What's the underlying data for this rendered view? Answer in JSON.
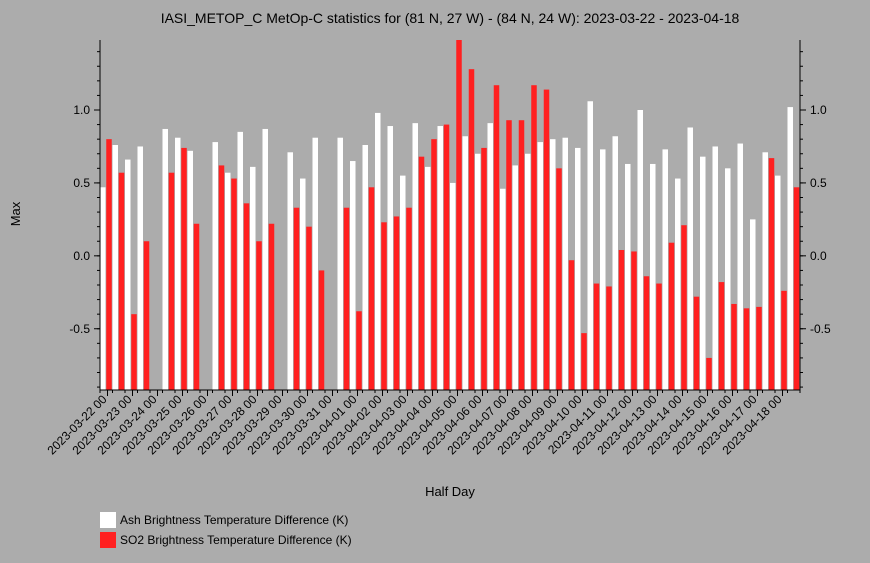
{
  "chart_data": {
    "type": "bar",
    "title": "IASI_METOP_C MetOp-C statistics for (81 N, 27 W) - (84 N, 24 W): 2023-03-22 - 2023-04-18",
    "xlabel": "Half Day",
    "ylabel": "Max",
    "ylim": [
      -0.92,
      1.48
    ],
    "yticks": [
      -0.5,
      0.0,
      0.5,
      1.0
    ],
    "ytick_labels": [
      "-0.5",
      "0.0",
      "0.5",
      "1.0"
    ],
    "grid": false,
    "legend_position": "bottom-left",
    "x_tick_labels": [
      "2023-03-22 00",
      "2023-03-23 00",
      "2023-03-24 00",
      "2023-03-25 00",
      "2023-03-26 00",
      "2023-03-27 00",
      "2023-03-28 00",
      "2023-03-29 00",
      "2023-03-30 00",
      "2023-03-31 00",
      "2023-04-01 00",
      "2023-04-02 00",
      "2023-04-03 00",
      "2023-04-04 00",
      "2023-04-05 00",
      "2023-04-06 00",
      "2023-04-07 00",
      "2023-04-08 00",
      "2023-04-09 00",
      "2023-04-10 00",
      "2023-04-11 00",
      "2023-04-12 00",
      "2023-04-13 00",
      "2023-04-14 00",
      "2023-04-15 00",
      "2023-04-16 00",
      "2023-04-17 00",
      "2023-04-18 00"
    ],
    "series": [
      {
        "name": "Ash Brightness Temperature Difference (K)",
        "color": "#ffffff",
        "values": [
          0.47,
          0.76,
          0.66,
          0.75,
          null,
          0.87,
          0.81,
          0.72,
          null,
          0.78,
          0.57,
          0.85,
          0.61,
          0.87,
          null,
          0.71,
          0.53,
          0.81,
          null,
          0.81,
          0.65,
          0.76,
          0.98,
          0.89,
          0.55,
          0.91,
          0.61,
          0.89,
          0.5,
          0.82,
          0.7,
          0.91,
          0.46,
          0.62,
          0.7,
          0.78,
          0.8,
          0.81,
          0.74,
          1.06,
          0.73,
          0.82,
          0.63,
          1.0,
          0.63,
          0.73,
          0.53,
          0.88,
          0.68,
          0.75,
          0.6,
          0.77,
          0.25,
          0.71,
          0.55,
          1.02
        ]
      },
      {
        "name": "SO2 Brightness Temperature Difference (K)",
        "color": "#ff2020",
        "values": [
          0.8,
          0.57,
          -0.4,
          0.1,
          null,
          0.57,
          0.74,
          0.22,
          null,
          0.62,
          0.53,
          0.36,
          0.1,
          0.22,
          null,
          0.33,
          0.2,
          -0.1,
          null,
          0.33,
          -0.38,
          0.47,
          0.23,
          0.27,
          0.33,
          0.68,
          0.8,
          0.9,
          1.48,
          1.28,
          0.74,
          1.17,
          0.93,
          0.93,
          1.17,
          1.14,
          0.6,
          -0.03,
          -0.53,
          -0.19,
          -0.21,
          0.04,
          0.03,
          -0.14,
          -0.19,
          0.09,
          0.21,
          -0.28,
          -0.7,
          -0.18,
          -0.33,
          -0.36,
          -0.35,
          0.67,
          -0.24,
          0.47
        ]
      }
    ]
  }
}
